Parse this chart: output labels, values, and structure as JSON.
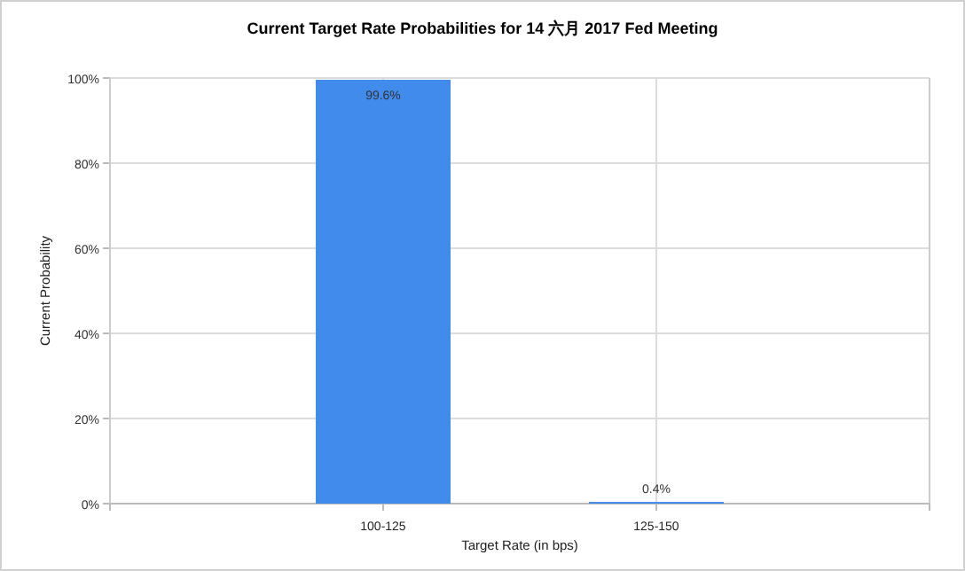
{
  "chart_data": {
    "type": "bar",
    "title": "Current Target Rate Probabilities for 14 六月 2017 Fed Meeting",
    "xlabel": "Target Rate (in bps)",
    "ylabel": "Current Probability",
    "categories": [
      "100-125",
      "125-150"
    ],
    "values": [
      99.6,
      0.4
    ],
    "value_labels": [
      "99.6%",
      "0.4%"
    ],
    "color": "#418bed",
    "ylim": [
      0,
      100
    ],
    "yticks": [
      {
        "value": 0,
        "label": "0%"
      },
      {
        "value": 20,
        "label": "20%"
      },
      {
        "value": 40,
        "label": "40%"
      },
      {
        "value": 60,
        "label": "60%"
      },
      {
        "value": 80,
        "label": "80%"
      },
      {
        "value": 100,
        "label": "100%"
      }
    ],
    "grid": true
  }
}
